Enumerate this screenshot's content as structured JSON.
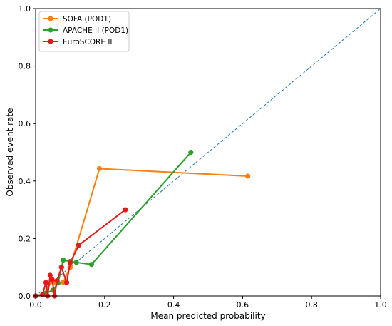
{
  "chart_data": {
    "type": "line",
    "title": "",
    "xlabel": "Mean predicted probability",
    "ylabel": "Observed event rate",
    "xlim": [
      0.0,
      1.0
    ],
    "ylim": [
      0.0,
      1.0
    ],
    "xticks": [
      "0.0",
      "0.2",
      "0.4",
      "0.6",
      "0.8",
      "1.0"
    ],
    "yticks": [
      "0.0",
      "0.2",
      "0.4",
      "0.6",
      "0.8",
      "1.0"
    ],
    "grid": false,
    "legend_position": "top-left",
    "reference_line": {
      "x": [
        0,
        1
      ],
      "y": [
        0,
        1
      ],
      "color": "#1f77b4",
      "style": "dashed"
    },
    "series": [
      {
        "name": "SOFA (POD1)",
        "color": "#ff7f0e",
        "x": [
          0.0,
          0.025,
          0.045,
          0.058,
          0.08,
          0.1,
          0.185,
          0.615
        ],
        "y": [
          0.0,
          0.005,
          0.05,
          0.045,
          0.048,
          0.1,
          0.443,
          0.417
        ]
      },
      {
        "name": "APACHE II (POD1)",
        "color": "#2ca02c",
        "x": [
          0.0,
          0.03,
          0.05,
          0.065,
          0.08,
          0.1,
          0.118,
          0.162,
          0.45
        ],
        "y": [
          0.0,
          0.01,
          0.02,
          0.045,
          0.125,
          0.12,
          0.117,
          0.11,
          0.5
        ]
      },
      {
        "name": "EuroSCORE II",
        "color": "#e8191b",
        "x": [
          0.0,
          0.02,
          0.03,
          0.035,
          0.042,
          0.048,
          0.055,
          0.062,
          0.075,
          0.09,
          0.1,
          0.125,
          0.26
        ],
        "y": [
          0.0,
          0.005,
          0.047,
          0.0,
          0.072,
          0.057,
          0.0,
          0.053,
          0.1,
          0.047,
          0.115,
          0.177,
          0.3
        ]
      }
    ]
  }
}
